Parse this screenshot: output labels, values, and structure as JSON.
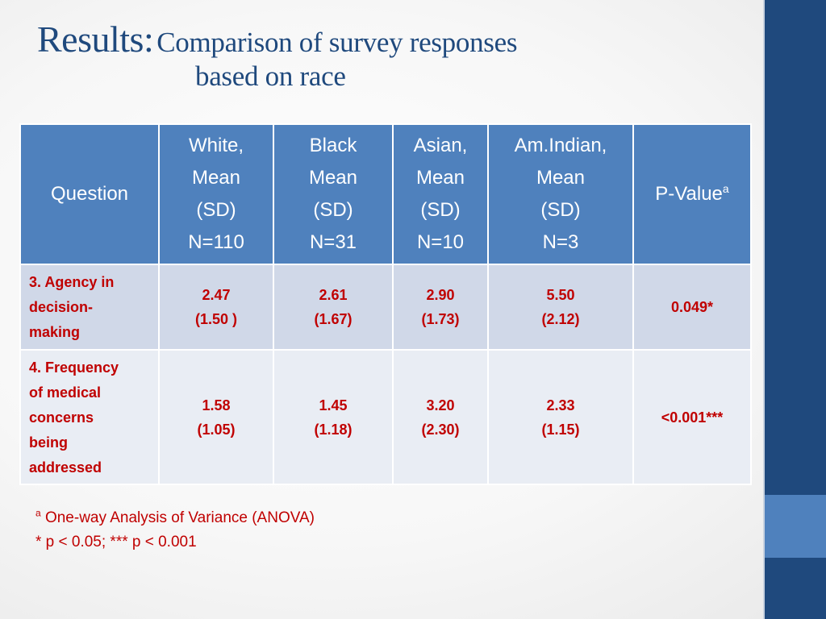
{
  "title": {
    "main": "Results:",
    "sub_line1": "Comparison of survey responses",
    "sub_line2": "based on race"
  },
  "table": {
    "headers": {
      "question": "Question",
      "white": [
        "White,",
        "Mean",
        "(SD)",
        "N=110"
      ],
      "black": [
        "Black",
        "Mean",
        "(SD)",
        "N=31"
      ],
      "asian": [
        "Asian,",
        "Mean",
        "(SD)",
        "N=10"
      ],
      "amindian": [
        "Am.Indian,",
        "Mean",
        "(SD)",
        "N=3"
      ],
      "pvalue": "P-Value",
      "pvalue_sup": "a"
    },
    "rows": [
      {
        "question": [
          "3. Agency in",
          "decision-",
          "making"
        ],
        "white": [
          "2.47",
          "(1.50 )"
        ],
        "black": [
          "2.61",
          "(1.67)"
        ],
        "asian": [
          "2.90",
          "(1.73)"
        ],
        "amindian": [
          "5.50",
          "(2.12)"
        ],
        "pvalue": "0.049*"
      },
      {
        "question": [
          "4. Frequency",
          "of medical",
          "concerns",
          "being",
          "addressed"
        ],
        "white": [
          "1.58",
          "(1.05)"
        ],
        "black": [
          "1.45",
          "(1.18)"
        ],
        "asian": [
          "3.20",
          "(2.30)"
        ],
        "amindian": [
          "2.33",
          "(1.15)"
        ],
        "pvalue": "<0.001***"
      }
    ]
  },
  "notes": {
    "sup": "a",
    "line1": " One-way Analysis of Variance (ANOVA)",
    "line2": "* p < 0.05; *** p < 0.001"
  },
  "colors": {
    "header_fill": "#4f81bd",
    "title_text": "#1f497d",
    "body_text": "#c00000",
    "row_odd": "#d0d8e8",
    "row_even": "#e9edf4",
    "side_bar": "#1f497d"
  }
}
